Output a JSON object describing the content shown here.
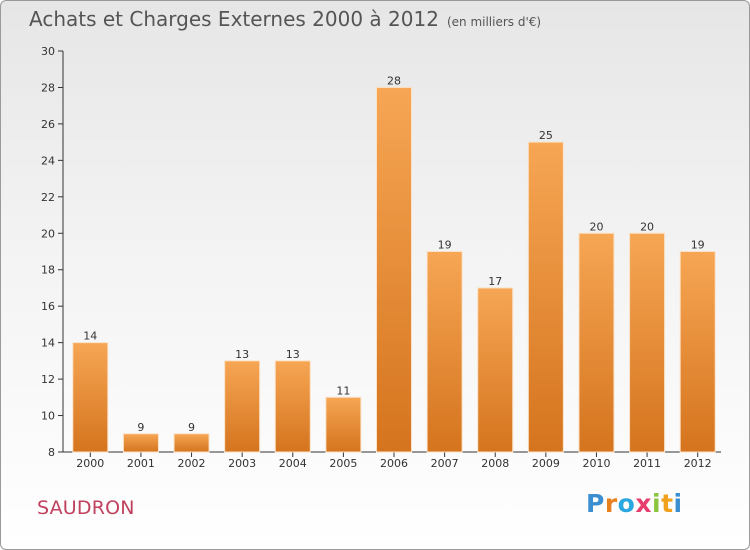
{
  "header": {
    "title": "Achats et Charges Externes 2000 à 2012",
    "subtitle": "(en milliers d'€)"
  },
  "footer": {
    "town": "SAUDRON",
    "logo_letters": [
      "P",
      "r",
      "o",
      "x",
      "i",
      "t",
      "i"
    ],
    "logo_colors": [
      "#3b8fd0",
      "#e8801e",
      "#2aa7de",
      "#e83d6f",
      "#8bc43f",
      "#f0a21e",
      "#3b8fd0"
    ]
  },
  "chart_data": {
    "type": "bar",
    "categories": [
      "2000",
      "2001",
      "2002",
      "2003",
      "2004",
      "2005",
      "2006",
      "2007",
      "2008",
      "2009",
      "2010",
      "2011",
      "2012"
    ],
    "values": [
      14,
      9,
      9,
      13,
      13,
      11,
      28,
      19,
      17,
      25,
      20,
      20,
      19
    ],
    "title": "Achats et Charges Externes 2000 à 2012",
    "ylim": [
      8,
      30
    ],
    "yticks": [
      8,
      10,
      12,
      14,
      16,
      18,
      20,
      22,
      24,
      26,
      28,
      30
    ],
    "grid": false,
    "bar_color": "#f0923a"
  }
}
